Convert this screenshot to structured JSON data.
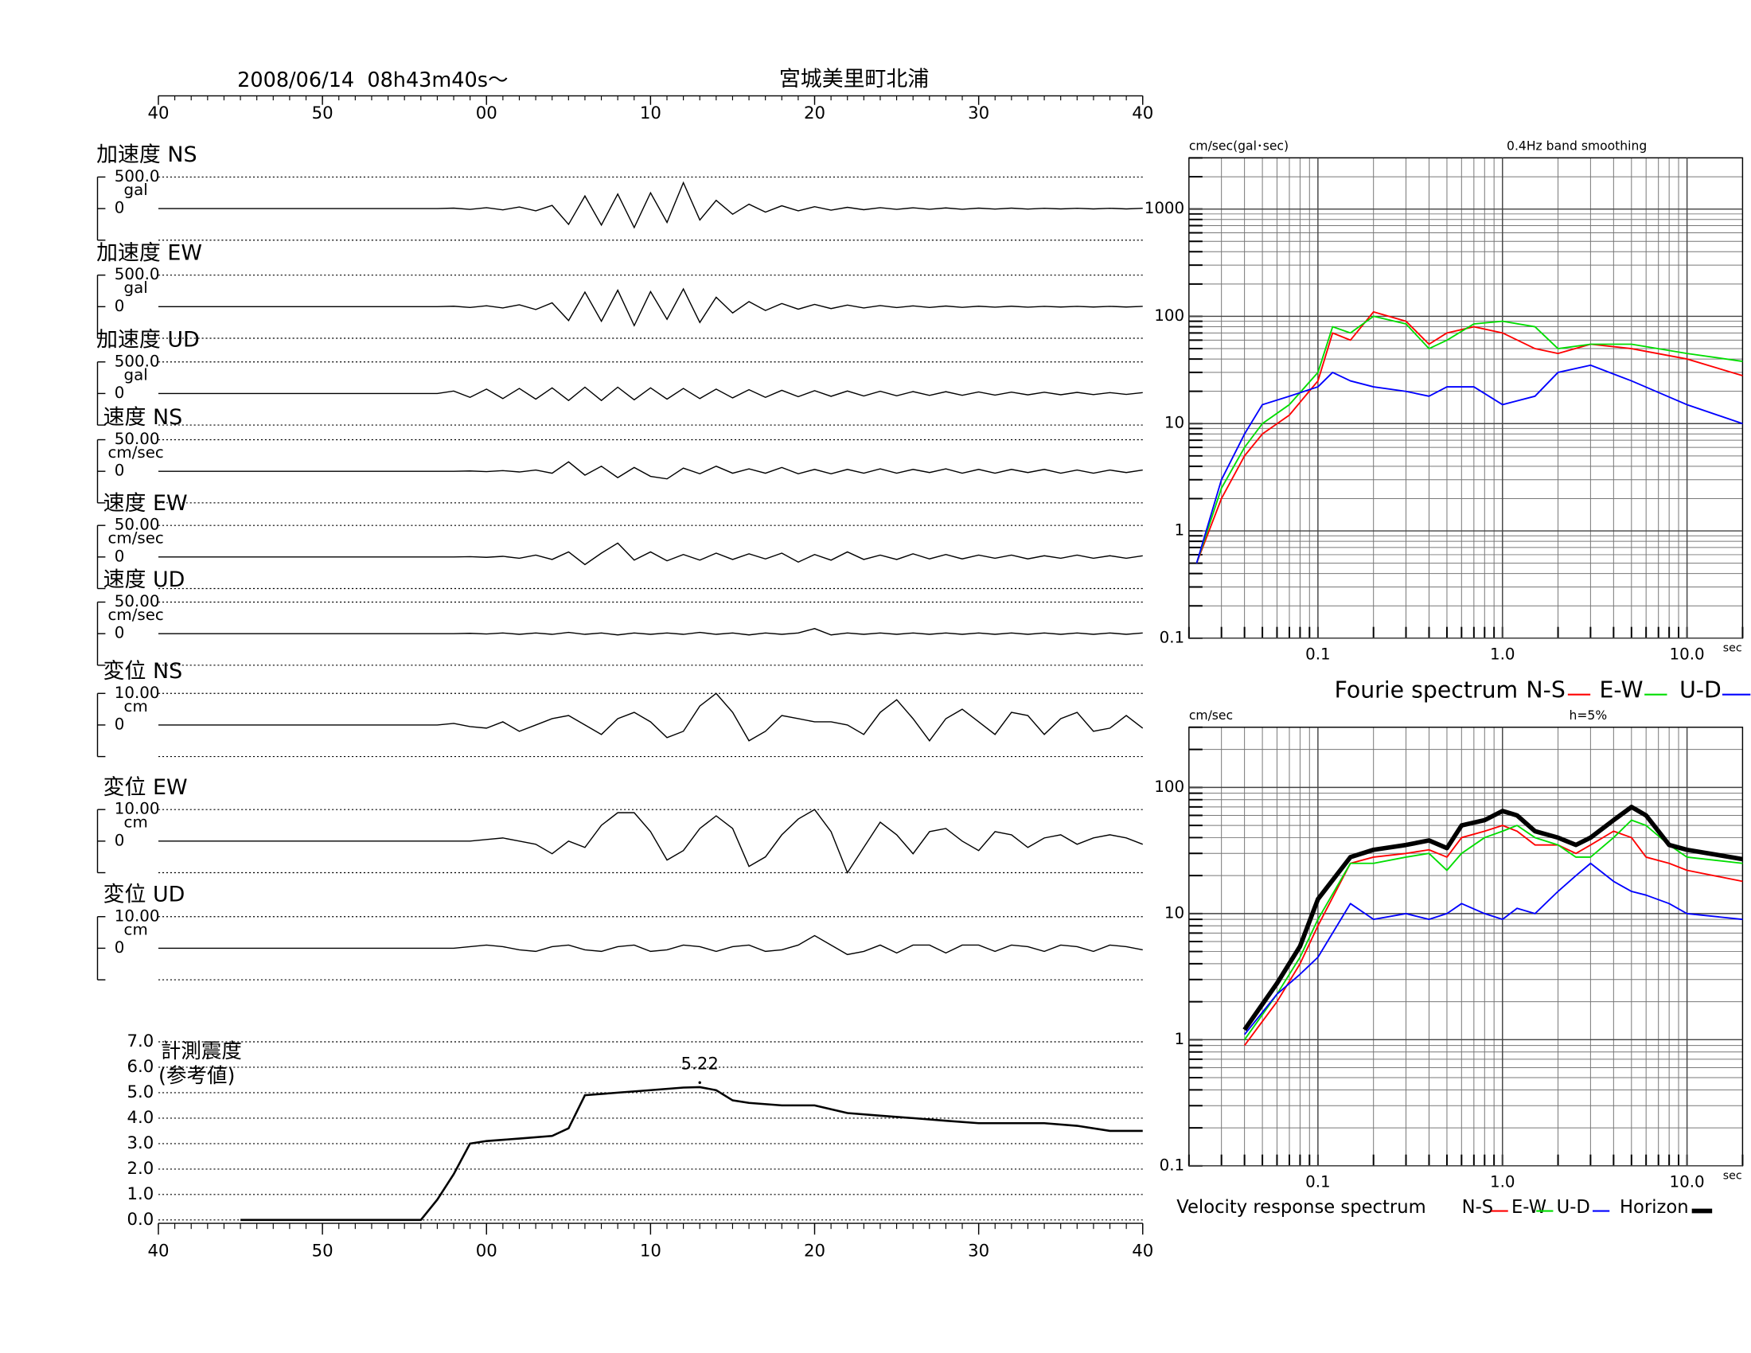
{
  "chart_data": [
    {
      "type": "line",
      "title": "宮城美里町北浦",
      "subtitle": "2008/06/14  08h43m40s〜",
      "xlim": [
        0,
        60
      ],
      "xticks": [
        {
          "value": 0,
          "label": "40"
        },
        {
          "value": 10,
          "label": "50"
        },
        {
          "value": 20,
          "label": "00"
        },
        {
          "value": 30,
          "label": "10"
        },
        {
          "value": 40,
          "label": "20"
        },
        {
          "value": 50,
          "label": "30"
        },
        {
          "value": 60,
          "label": "40"
        }
      ],
      "x": [
        0,
        1,
        2,
        3,
        4,
        5,
        6,
        7,
        8,
        9,
        10,
        11,
        12,
        13,
        14,
        15,
        16,
        17,
        18,
        19,
        20,
        21,
        22,
        23,
        24,
        25,
        26,
        27,
        28,
        29,
        30,
        31,
        32,
        33,
        34,
        35,
        36,
        37,
        38,
        39,
        40,
        41,
        42,
        43,
        44,
        45,
        46,
        47,
        48,
        49,
        50,
        51,
        52,
        53,
        54,
        55,
        56,
        57,
        58,
        59,
        60
      ],
      "color": "#000000",
      "panels": [
        {
          "name": "加速度 NS",
          "unit": "gal",
          "ylim": [
            -500,
            500
          ],
          "yticks": [
            {
              "value": 500,
              "label": "500.0"
            },
            0
          ],
          "values": [
            0,
            0,
            0,
            0,
            0,
            0,
            0,
            0,
            0,
            0,
            0,
            0,
            0,
            0,
            0,
            0,
            0,
            0,
            8,
            -12,
            15,
            -20,
            25,
            -35,
            50,
            -250,
            200,
            -260,
            230,
            -300,
            250,
            -220,
            410,
            -180,
            130,
            -90,
            70,
            -55,
            45,
            -35,
            30,
            -25,
            20,
            -18,
            15,
            -12,
            12,
            -10,
            10,
            -10,
            8,
            -8,
            8,
            -8,
            6,
            -6,
            6,
            -6,
            5,
            -5,
            5
          ]
        },
        {
          "name": "加速度 EW",
          "unit": "gal",
          "ylim": [
            -500,
            500
          ],
          "yticks": [
            {
              "value": 500,
              "label": "500.0"
            },
            0
          ],
          "values": [
            0,
            0,
            0,
            0,
            0,
            0,
            0,
            0,
            0,
            0,
            0,
            0,
            0,
            0,
            0,
            0,
            0,
            0,
            8,
            -12,
            15,
            -20,
            30,
            -45,
            60,
            -220,
            230,
            -230,
            260,
            -300,
            240,
            -200,
            280,
            -250,
            150,
            -100,
            80,
            -60,
            50,
            -40,
            35,
            -30,
            25,
            -20,
            18,
            -15,
            12,
            -12,
            10,
            -10,
            8,
            -8,
            8,
            -8,
            6,
            -6,
            6,
            -6,
            5,
            -5,
            5
          ]
        },
        {
          "name": "加速度 UD",
          "unit": "gal",
          "ylim": [
            -500,
            500
          ],
          "yticks": [
            {
              "value": 500,
              "label": "500.0"
            },
            0
          ],
          "values": [
            0,
            0,
            0,
            0,
            0,
            0,
            0,
            0,
            0,
            0,
            0,
            0,
            0,
            0,
            0,
            0,
            0,
            0,
            40,
            -60,
            70,
            -80,
            80,
            -90,
            90,
            -110,
            100,
            -110,
            100,
            -100,
            90,
            -90,
            80,
            -80,
            70,
            -70,
            60,
            -60,
            50,
            -50,
            45,
            -45,
            40,
            -40,
            35,
            -35,
            30,
            -30,
            28,
            -28,
            25,
            -25,
            22,
            -22,
            20,
            -20,
            18,
            -18,
            15,
            -15,
            15
          ]
        },
        {
          "name": "速度 NS",
          "unit": "cm/sec",
          "ylim": [
            -50,
            50
          ],
          "yticks": [
            {
              "value": 50,
              "label": "50.00"
            },
            0
          ],
          "values": [
            0,
            0,
            0,
            0,
            0,
            0,
            0,
            0,
            0,
            0,
            0,
            0,
            0,
            0,
            0,
            0,
            0,
            0,
            0,
            0.5,
            -0.5,
            1,
            -1,
            2,
            -3,
            15,
            -6,
            8,
            -10,
            6,
            -8,
            -12,
            5,
            -4,
            8,
            -3,
            4,
            -3,
            6,
            -4,
            3,
            -4,
            3,
            -3,
            4,
            -3,
            3,
            -2,
            4,
            -3,
            3,
            -3,
            3,
            -2,
            3,
            -3,
            2,
            -3,
            2,
            -2,
            2
          ]
        },
        {
          "name": "速度 EW",
          "unit": "cm/sec",
          "ylim": [
            -50,
            50
          ],
          "yticks": [
            {
              "value": 50,
              "label": "50.00"
            },
            0
          ],
          "values": [
            0,
            0,
            0,
            0,
            0,
            0,
            0,
            0,
            0,
            0,
            0,
            0,
            0,
            0,
            0,
            0,
            0,
            0,
            0,
            0.5,
            -0.5,
            1,
            -2,
            3,
            -4,
            8,
            -12,
            6,
            22,
            -5,
            8,
            -6,
            4,
            -5,
            6,
            -4,
            5,
            -3,
            6,
            -8,
            4,
            -5,
            8,
            -4,
            3,
            -4,
            5,
            -3,
            4,
            -3,
            3,
            -2,
            3,
            -3,
            2,
            -2,
            3,
            -2,
            2,
            -2,
            2
          ]
        },
        {
          "name": "速度 UD",
          "unit": "cm/sec",
          "ylim": [
            -50,
            50
          ],
          "yticks": [
            {
              "value": 50,
              "label": "50.00"
            },
            0
          ],
          "values": [
            0,
            0,
            0,
            0,
            0,
            0,
            0,
            0,
            0,
            0,
            0,
            0,
            0,
            0,
            0,
            0,
            0,
            0,
            0,
            0.5,
            -0.5,
            1,
            -1,
            1,
            -1,
            2,
            -1,
            1,
            -2,
            1,
            -1,
            1,
            -1,
            2,
            -1,
            1,
            -2,
            1,
            -1,
            1,
            8,
            -2,
            1,
            -1,
            1,
            -1,
            1,
            -1,
            1,
            -1,
            1,
            -1,
            1,
            -1,
            1,
            -1,
            1,
            -1,
            1,
            -1,
            1
          ]
        },
        {
          "name": "変位 NS",
          "unit": "cm",
          "ylim": [
            -10,
            10
          ],
          "yticks": [
            {
              "value": 10,
              "label": "10.00"
            },
            0
          ],
          "values": [
            0,
            0,
            0,
            0,
            0,
            0,
            0,
            0,
            0,
            0,
            0,
            0,
            0,
            0,
            0,
            0,
            0,
            0,
            0.5,
            -0.5,
            -1,
            1,
            -2,
            0,
            2,
            3,
            0,
            -3,
            2,
            4,
            1,
            -4,
            -2,
            6,
            10,
            4,
            -5,
            -2,
            3,
            2,
            1,
            1,
            0,
            -3,
            4,
            8,
            2,
            -5,
            2,
            5,
            1,
            -3,
            4,
            3,
            -3,
            2,
            4,
            -2,
            -1,
            3,
            -1
          ]
        },
        {
          "name": "変位 EW",
          "unit": "cm",
          "ylim": [
            -10,
            10
          ],
          "yticks": [
            {
              "value": 10,
              "label": "10.00"
            },
            0
          ],
          "values": [
            0,
            0,
            0,
            0,
            0,
            0,
            0,
            0,
            0,
            0,
            0,
            0,
            0,
            0,
            0,
            0,
            0,
            0,
            0,
            0,
            0.5,
            1,
            0,
            -1,
            -4,
            0,
            -2,
            5,
            9,
            9,
            3,
            -6,
            -3,
            4,
            8,
            4,
            -8,
            -5,
            2,
            7,
            10,
            3,
            -10,
            -2,
            6,
            2,
            -4,
            3,
            4,
            0,
            -3,
            3,
            2,
            -2,
            1,
            2,
            -1,
            1,
            2,
            1,
            -1
          ]
        },
        {
          "name": "変位 UD",
          "unit": "cm",
          "ylim": [
            -10,
            10
          ],
          "yticks": [
            {
              "value": 10,
              "label": "10.00"
            },
            0
          ],
          "values": [
            0,
            0,
            0,
            0,
            0,
            0,
            0,
            0,
            0,
            0,
            0,
            0,
            0,
            0,
            0,
            0,
            0,
            0,
            0,
            0.5,
            1,
            0.5,
            -0.5,
            -1,
            0.5,
            1,
            -0.5,
            -1,
            0.5,
            1,
            -1,
            -0.5,
            1,
            0.5,
            -1,
            0.5,
            1,
            -1,
            -0.5,
            1,
            4,
            1,
            -2,
            -1,
            1,
            -1.5,
            1,
            1,
            -1.5,
            1,
            1,
            -1,
            1,
            0.5,
            -1,
            1,
            0.5,
            -1,
            1,
            0.5,
            -0.5
          ]
        }
      ]
    },
    {
      "type": "line",
      "title": "計測震度",
      "subtitle": "(参考値)",
      "color": "#000000",
      "xlim": [
        0,
        60
      ],
      "xticks": [
        {
          "value": 0,
          "label": "40"
        },
        {
          "value": 10,
          "label": "50"
        },
        {
          "value": 20,
          "label": "00"
        },
        {
          "value": 30,
          "label": "10"
        },
        {
          "value": 40,
          "label": "20"
        },
        {
          "value": 50,
          "label": "30"
        },
        {
          "value": 60,
          "label": "40"
        }
      ],
      "ylim": [
        0,
        7
      ],
      "yticks": [
        {
          "value": 0,
          "label": "0.0"
        },
        {
          "value": 1,
          "label": "1.0"
        },
        {
          "value": 2,
          "label": "2.0"
        },
        {
          "value": 3,
          "label": "3.0"
        },
        {
          "value": 4,
          "label": "4.0"
        },
        {
          "value": 5,
          "label": "5.0"
        },
        {
          "value": 6,
          "label": "6.0"
        },
        {
          "value": 7,
          "label": "7.0"
        }
      ],
      "x": [
        5,
        16,
        17,
        18,
        19,
        20,
        22,
        24,
        25,
        26,
        28,
        30,
        32,
        33,
        34,
        35,
        36,
        38,
        40,
        42,
        44,
        46,
        48,
        50,
        52,
        54,
        56,
        58,
        60
      ],
      "values": [
        0,
        0,
        0.8,
        1.8,
        3.0,
        3.1,
        3.2,
        3.3,
        3.6,
        4.9,
        5.0,
        5.1,
        5.2,
        5.22,
        5.1,
        4.7,
        4.6,
        4.5,
        4.5,
        4.2,
        4.1,
        4.0,
        3.9,
        3.8,
        3.8,
        3.8,
        3.7,
        3.5,
        3.5
      ]
    },
    {
      "type": "line",
      "caption": "Fourie spectrum",
      "y_unit": "cm/sec(gal･sec)",
      "note": "0.4Hz band smoothing",
      "x_unit": "sec",
      "log_x": true,
      "log_y": true,
      "grid": true,
      "xlim": [
        0.02,
        20
      ],
      "xticks": [
        0.1,
        {
          "value": 1,
          "label": "1.0"
        },
        {
          "value": 10,
          "label": "10.0"
        }
      ],
      "ylim": [
        0.1,
        3000
      ],
      "yticks": [
        0.1,
        1,
        10,
        100,
        1000
      ],
      "x": [
        0.022,
        0.03,
        0.04,
        0.05,
        0.07,
        0.1,
        0.12,
        0.15,
        0.2,
        0.3,
        0.4,
        0.5,
        0.7,
        1,
        1.5,
        2,
        3,
        5,
        10,
        20
      ],
      "series": [
        {
          "name": "N-S",
          "color": "#ff0000",
          "values": [
            0.5,
            2,
            5,
            8,
            12,
            25,
            70,
            60,
            110,
            90,
            55,
            70,
            80,
            70,
            50,
            45,
            55,
            50,
            40,
            28
          ]
        },
        {
          "name": "E-W",
          "color": "#00dd00",
          "values": [
            0.5,
            2.5,
            6,
            10,
            15,
            30,
            80,
            70,
            100,
            85,
            50,
            60,
            85,
            90,
            80,
            50,
            55,
            55,
            45,
            38
          ]
        },
        {
          "name": "U-D",
          "color": "#0000ff",
          "values": [
            0.5,
            3,
            8,
            15,
            18,
            22,
            30,
            25,
            22,
            20,
            18,
            22,
            22,
            15,
            18,
            30,
            35,
            25,
            15,
            10
          ]
        }
      ]
    },
    {
      "type": "line",
      "caption": "Velocity response spectrum",
      "y_unit": "cm/sec",
      "note": "h=5%",
      "x_unit": "sec",
      "log_x": true,
      "log_y": true,
      "grid": true,
      "xlim": [
        0.02,
        20
      ],
      "xticks": [
        0.1,
        {
          "value": 1,
          "label": "1.0"
        },
        {
          "value": 10,
          "label": "10.0"
        }
      ],
      "ylim": [
        0.1,
        300
      ],
      "yticks": [
        0.1,
        1,
        10,
        100
      ],
      "x": [
        0.04,
        0.06,
        0.08,
        0.1,
        0.15,
        0.2,
        0.3,
        0.4,
        0.5,
        0.6,
        0.8,
        1,
        1.2,
        1.5,
        2,
        2.5,
        3,
        4,
        5,
        6,
        8,
        10,
        20
      ],
      "series": [
        {
          "name": "N-S",
          "color": "#ff0000",
          "values": [
            0.9,
            2,
            4,
            8,
            25,
            28,
            30,
            32,
            28,
            40,
            45,
            50,
            45,
            35,
            35,
            30,
            35,
            45,
            40,
            28,
            25,
            22,
            18
          ]
        },
        {
          "name": "E-W",
          "color": "#00dd00",
          "values": [
            1,
            2.3,
            4.5,
            9,
            25,
            25,
            28,
            30,
            22,
            30,
            40,
            45,
            50,
            40,
            35,
            28,
            28,
            40,
            55,
            50,
            35,
            28,
            25
          ]
        },
        {
          "name": "U-D",
          "color": "#0000ff",
          "values": [
            1.1,
            2.3,
            3.3,
            4.5,
            12,
            9,
            10,
            9,
            10,
            12,
            10,
            9,
            11,
            10,
            15,
            20,
            25,
            18,
            15,
            14,
            12,
            10,
            9
          ]
        },
        {
          "name": "Horizon",
          "color": "#000000",
          "values": [
            1.2,
            2.8,
            5.5,
            13,
            28,
            32,
            35,
            38,
            33,
            50,
            55,
            65,
            60,
            45,
            40,
            35,
            40,
            55,
            70,
            60,
            35,
            32,
            27
          ]
        }
      ]
    }
  ]
}
